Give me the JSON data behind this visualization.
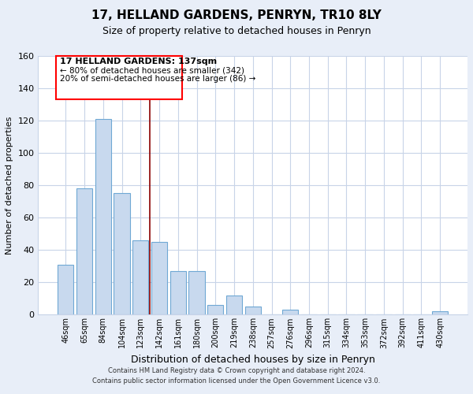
{
  "title": "17, HELLAND GARDENS, PENRYN, TR10 8LY",
  "subtitle": "Size of property relative to detached houses in Penryn",
  "xlabel": "Distribution of detached houses by size in Penryn",
  "ylabel": "Number of detached properties",
  "bar_labels": [
    "46sqm",
    "65sqm",
    "84sqm",
    "104sqm",
    "123sqm",
    "142sqm",
    "161sqm",
    "180sqm",
    "200sqm",
    "219sqm",
    "238sqm",
    "257sqm",
    "276sqm",
    "296sqm",
    "315sqm",
    "334sqm",
    "353sqm",
    "372sqm",
    "392sqm",
    "411sqm",
    "430sqm"
  ],
  "bar_values": [
    31,
    78,
    121,
    75,
    46,
    45,
    27,
    27,
    6,
    12,
    5,
    0,
    3,
    0,
    0,
    0,
    0,
    0,
    0,
    0,
    2
  ],
  "bar_color": "#c8d9ee",
  "bar_edge_color": "#6fa8d4",
  "red_line_after_index": 4,
  "ylim": [
    0,
    160
  ],
  "yticks": [
    0,
    20,
    40,
    60,
    80,
    100,
    120,
    140,
    160
  ],
  "annotation_title": "17 HELLAND GARDENS: 137sqm",
  "annotation_line1": "← 80% of detached houses are smaller (342)",
  "annotation_line2": "20% of semi-detached houses are larger (86) →",
  "footer_line1": "Contains HM Land Registry data © Crown copyright and database right 2024.",
  "footer_line2": "Contains public sector information licensed under the Open Government Licence v3.0.",
  "background_color": "#e8eef8",
  "plot_bg_color": "#ffffff",
  "grid_color": "#c8d4e8"
}
